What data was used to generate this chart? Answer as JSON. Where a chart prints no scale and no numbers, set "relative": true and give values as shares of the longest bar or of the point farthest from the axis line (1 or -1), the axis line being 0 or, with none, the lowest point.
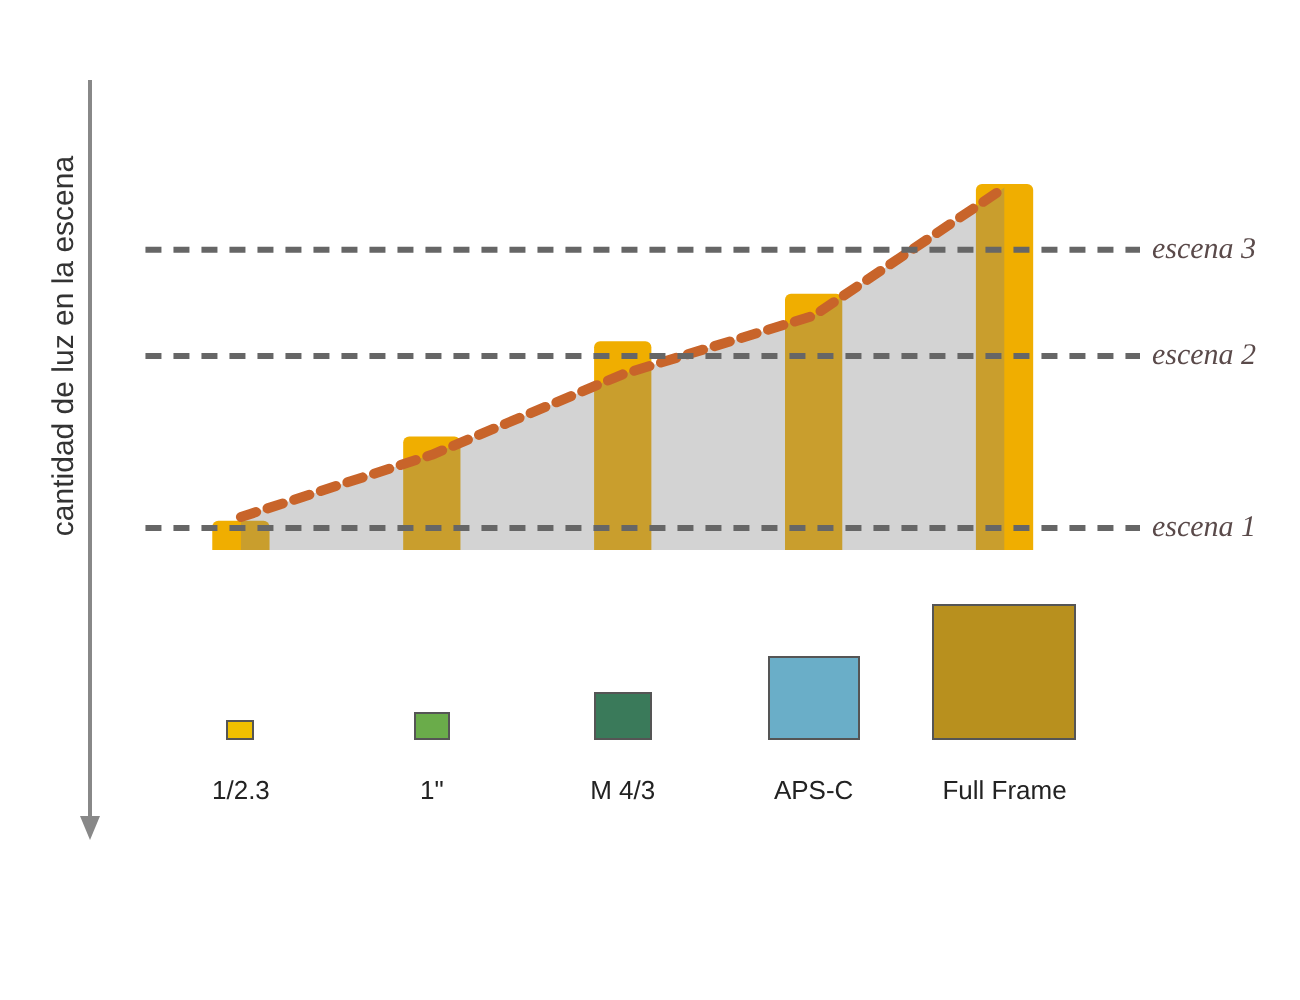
{
  "chart_data": {
    "type": "bar",
    "relative": true,
    "ylabel": "cantidad de luz en la escena",
    "tick_labels": "x",
    "categories": [
      "1/2.3",
      "1\"",
      "M 4/3",
      "APS-C",
      "Full Frame"
    ],
    "series": [
      {
        "color": "#f0ae00",
        "values": [
          0.08,
          0.31,
          0.57,
          0.7,
          1
        ]
      },
      {
        "type": "area",
        "color": "#c8642a",
        "line_style": "dashed",
        "values": [
          0.09,
          0.26,
          0.48,
          0.64,
          0.99
        ]
      }
    ],
    "ref_lines": [
      {
        "axis": "y",
        "value": 0.06,
        "label": "escena 1",
        "color": "#666666",
        "line_style": "dashed"
      },
      {
        "axis": "y",
        "value": 0.53,
        "label": "escena 2",
        "color": "#666666",
        "line_style": "dashed"
      },
      {
        "axis": "y",
        "value": 0.82,
        "label": "escena 3",
        "color": "#666666",
        "line_style": "dashed"
      }
    ]
  }
}
